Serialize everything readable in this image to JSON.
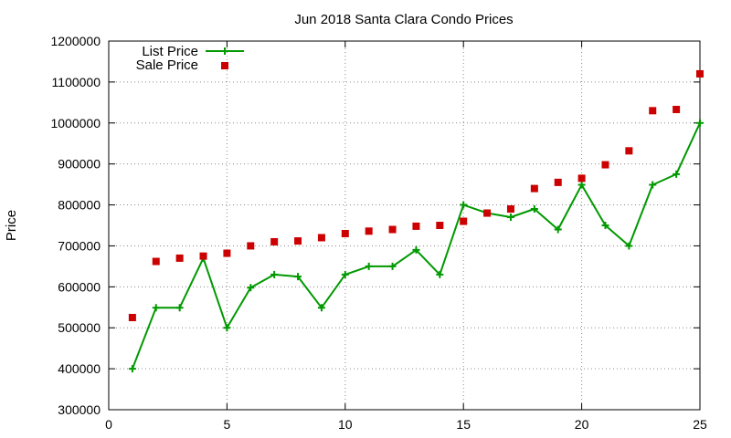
{
  "chart_data": {
    "type": "line",
    "title": "Jun 2018 Santa Clara Condo Prices",
    "xlabel": "",
    "ylabel": "Price",
    "xlim": [
      0,
      25
    ],
    "ylim": [
      300000,
      1200000
    ],
    "xticks": [
      "0",
      "5",
      "10",
      "15",
      "20",
      "25"
    ],
    "yticks": [
      "300000",
      "400000",
      "500000",
      "600000",
      "700000",
      "800000",
      "900000",
      "1000000",
      "1100000",
      "1200000"
    ],
    "grid": true,
    "legend_position": "top-left",
    "x": [
      1,
      2,
      3,
      4,
      5,
      6,
      7,
      8,
      9,
      10,
      11,
      12,
      13,
      14,
      15,
      16,
      17,
      18,
      19,
      20,
      21,
      22,
      23,
      24,
      25
    ],
    "series": [
      {
        "name": "List Price",
        "style": "line-with-plus-markers",
        "color": "#009900",
        "values": [
          400000,
          549000,
          549000,
          670000,
          500000,
          598000,
          630000,
          625000,
          549000,
          630000,
          650000,
          650000,
          690000,
          630000,
          800000,
          780000,
          770000,
          790000,
          740000,
          849000,
          750000,
          700000,
          849000,
          875000,
          1000000
        ]
      },
      {
        "name": "Sale Price",
        "style": "square-points",
        "color": "#cc0000",
        "values": [
          525000,
          662000,
          670000,
          675000,
          682000,
          700000,
          710000,
          712000,
          720000,
          730000,
          736000,
          740000,
          748000,
          750000,
          760000,
          780000,
          790000,
          840000,
          855000,
          865000,
          898000,
          932000,
          1030000,
          1033000,
          1120000
        ]
      }
    ]
  }
}
